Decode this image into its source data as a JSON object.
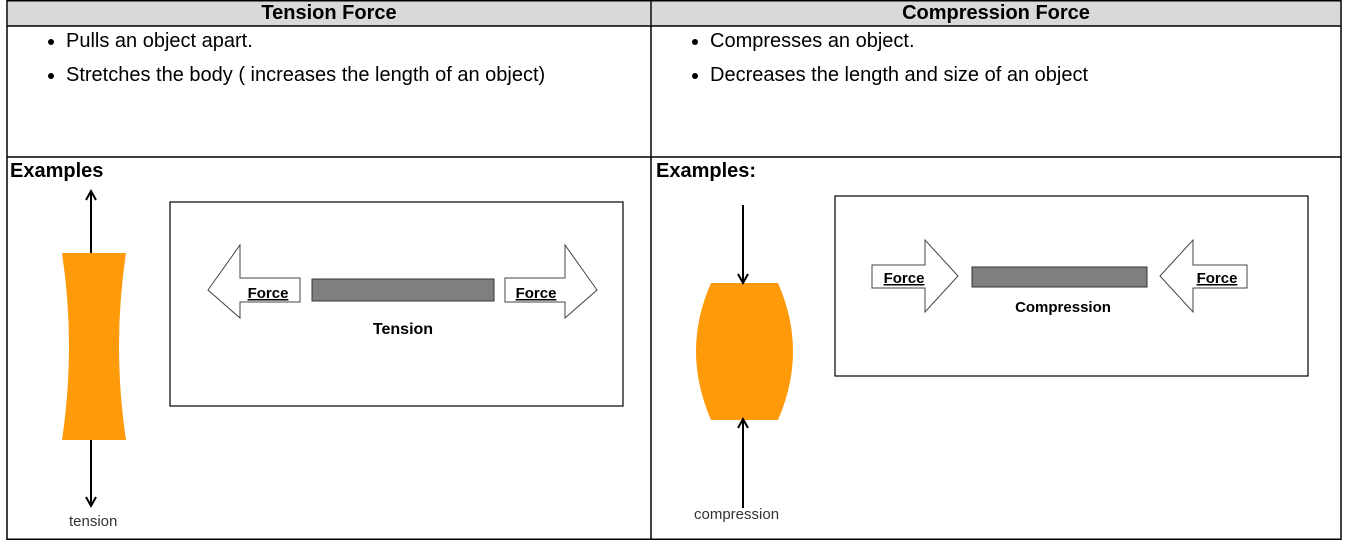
{
  "columns": [
    {
      "heading": "Tension Force",
      "bullets": [
        "Pulls an object apart.",
        "Stretches the body ( increases the length of an object)"
      ],
      "examples_label": "Examples",
      "object_label": "tension",
      "diagram": {
        "force_labels": [
          "Force",
          "Force"
        ],
        "caption": "Tension"
      }
    },
    {
      "heading": "Compression Force",
      "bullets": [
        "Compresses an object.",
        "Decreases the length and size of an object"
      ],
      "examples_label": "Examples:",
      "object_label": "compression",
      "diagram": {
        "force_labels": [
          "Force",
          "Force"
        ],
        "caption": "Compression"
      }
    }
  ]
}
